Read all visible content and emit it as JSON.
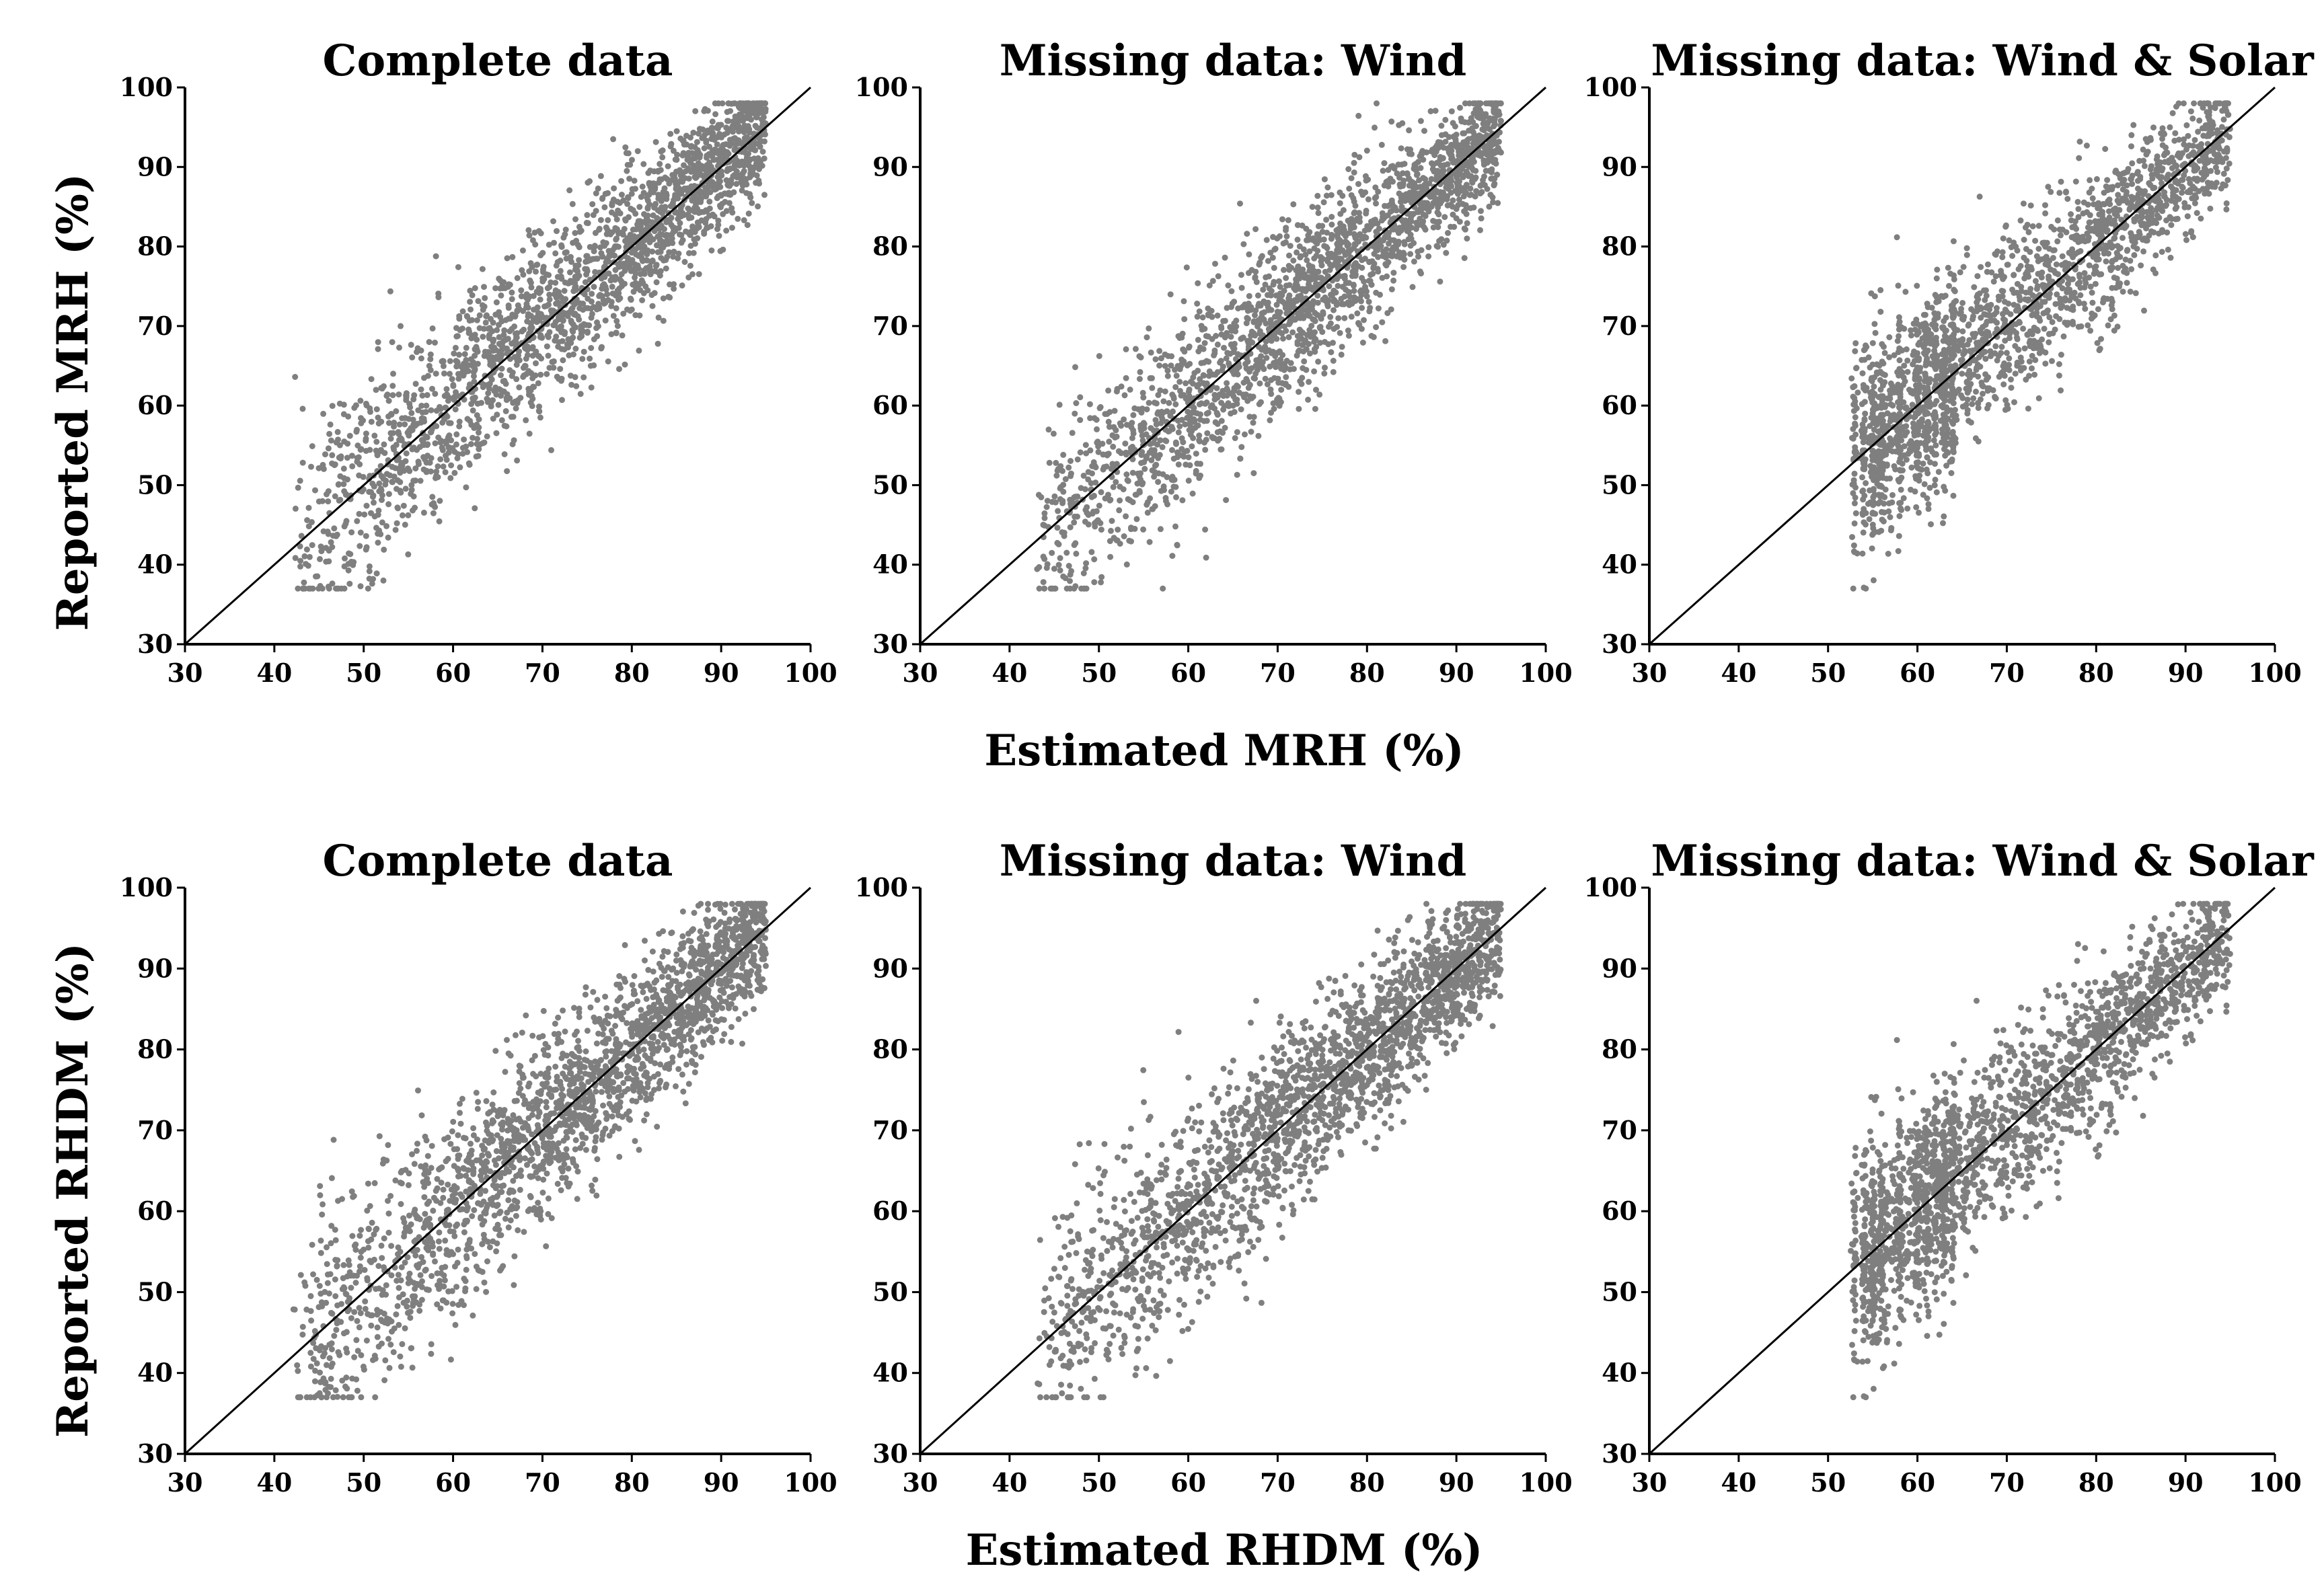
{
  "figure": {
    "row_labels": {
      "top_ylabel": "Reported MRH (%)",
      "top_xlabel": "Estimated MRH (%)",
      "bottom_ylabel": "Reported RHDM (%)",
      "bottom_xlabel": "Estimated RHDM (%)"
    }
  },
  "colors": {
    "points": "#7f7f7f",
    "axis": "#000000",
    "line": "#000000"
  },
  "chart_data": [
    {
      "type": "scatter",
      "title": "Complete data",
      "xlim": [
        30,
        100
      ],
      "ylim": [
        30,
        100
      ],
      "xticks": [
        30,
        40,
        50,
        60,
        70,
        80,
        90,
        100
      ],
      "yticks": [
        30,
        40,
        50,
        60,
        70,
        80,
        90,
        100
      ],
      "reference_line": "1:1",
      "x_range": [
        42,
        95
      ],
      "y_range": [
        37,
        98
      ],
      "cluster": "continuous"
    },
    {
      "type": "scatter",
      "title": "Missing data: Wind",
      "xlim": [
        30,
        100
      ],
      "ylim": [
        30,
        100
      ],
      "xticks": [
        30,
        40,
        50,
        60,
        70,
        80,
        90,
        100
      ],
      "yticks": [
        30,
        40,
        50,
        60,
        70,
        80,
        90,
        100
      ],
      "reference_line": "1:1",
      "x_range": [
        43,
        95
      ],
      "y_range": [
        37,
        98
      ],
      "cluster": "continuous"
    },
    {
      "type": "scatter",
      "title": "Missing data: Wind & Solar",
      "xlim": [
        30,
        100
      ],
      "ylim": [
        30,
        100
      ],
      "xticks": [
        30,
        40,
        50,
        60,
        70,
        80,
        90,
        100
      ],
      "yticks": [
        30,
        40,
        50,
        60,
        70,
        80,
        90,
        100
      ],
      "reference_line": "1:1",
      "x_range": [
        52.5,
        95
      ],
      "y_range": [
        37,
        98
      ],
      "cluster": "banded"
    },
    {
      "type": "scatter",
      "title": "Complete data",
      "xlim": [
        30,
        100
      ],
      "ylim": [
        30,
        100
      ],
      "xticks": [
        30,
        40,
        50,
        60,
        70,
        80,
        90,
        100
      ],
      "yticks": [
        30,
        40,
        50,
        60,
        70,
        80,
        90,
        100
      ],
      "reference_line": "1:1",
      "x_range": [
        42,
        95
      ],
      "y_range": [
        37,
        98
      ],
      "cluster": "continuous"
    },
    {
      "type": "scatter",
      "title": "Missing data: Wind",
      "xlim": [
        30,
        100
      ],
      "ylim": [
        30,
        100
      ],
      "xticks": [
        30,
        40,
        50,
        60,
        70,
        80,
        90,
        100
      ],
      "yticks": [
        30,
        40,
        50,
        60,
        70,
        80,
        90,
        100
      ],
      "reference_line": "1:1",
      "x_range": [
        43,
        95
      ],
      "y_range": [
        37,
        98
      ],
      "cluster": "continuous"
    },
    {
      "type": "scatter",
      "title": "Missing data: Wind & Solar",
      "xlim": [
        30,
        100
      ],
      "ylim": [
        30,
        100
      ],
      "xticks": [
        30,
        40,
        50,
        60,
        70,
        80,
        90,
        100
      ],
      "yticks": [
        30,
        40,
        50,
        60,
        70,
        80,
        90,
        100
      ],
      "reference_line": "1:1",
      "x_range": [
        52,
        95
      ],
      "y_range": [
        37,
        98
      ],
      "cluster": "banded"
    }
  ]
}
